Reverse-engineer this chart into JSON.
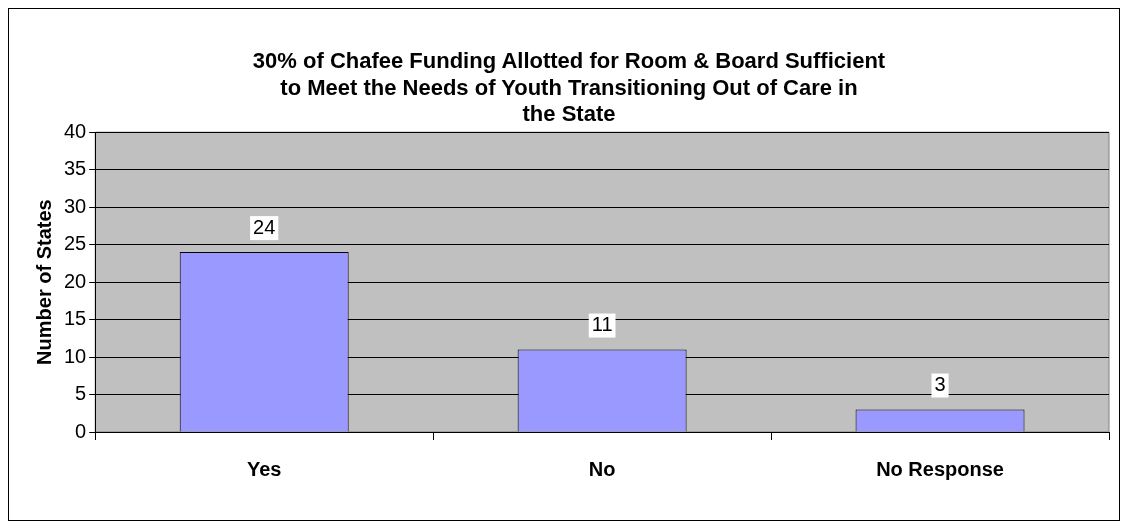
{
  "chart_data": {
    "type": "bar",
    "title": "30% of Chafee Funding Allotted for Room & Board Sufficient to Meet the Needs of Youth Transitioning Out of Care in the State",
    "ylabel": "Number of States",
    "categories": [
      "Yes",
      "No",
      "No Response"
    ],
    "values": [
      24,
      11,
      3
    ],
    "color": "#9999ff",
    "ylim": [
      0,
      40
    ],
    "yticks": [
      0,
      5,
      10,
      15,
      20,
      25,
      30,
      35,
      40
    ],
    "grid": "y",
    "legend": false,
    "data_labels": true
  }
}
